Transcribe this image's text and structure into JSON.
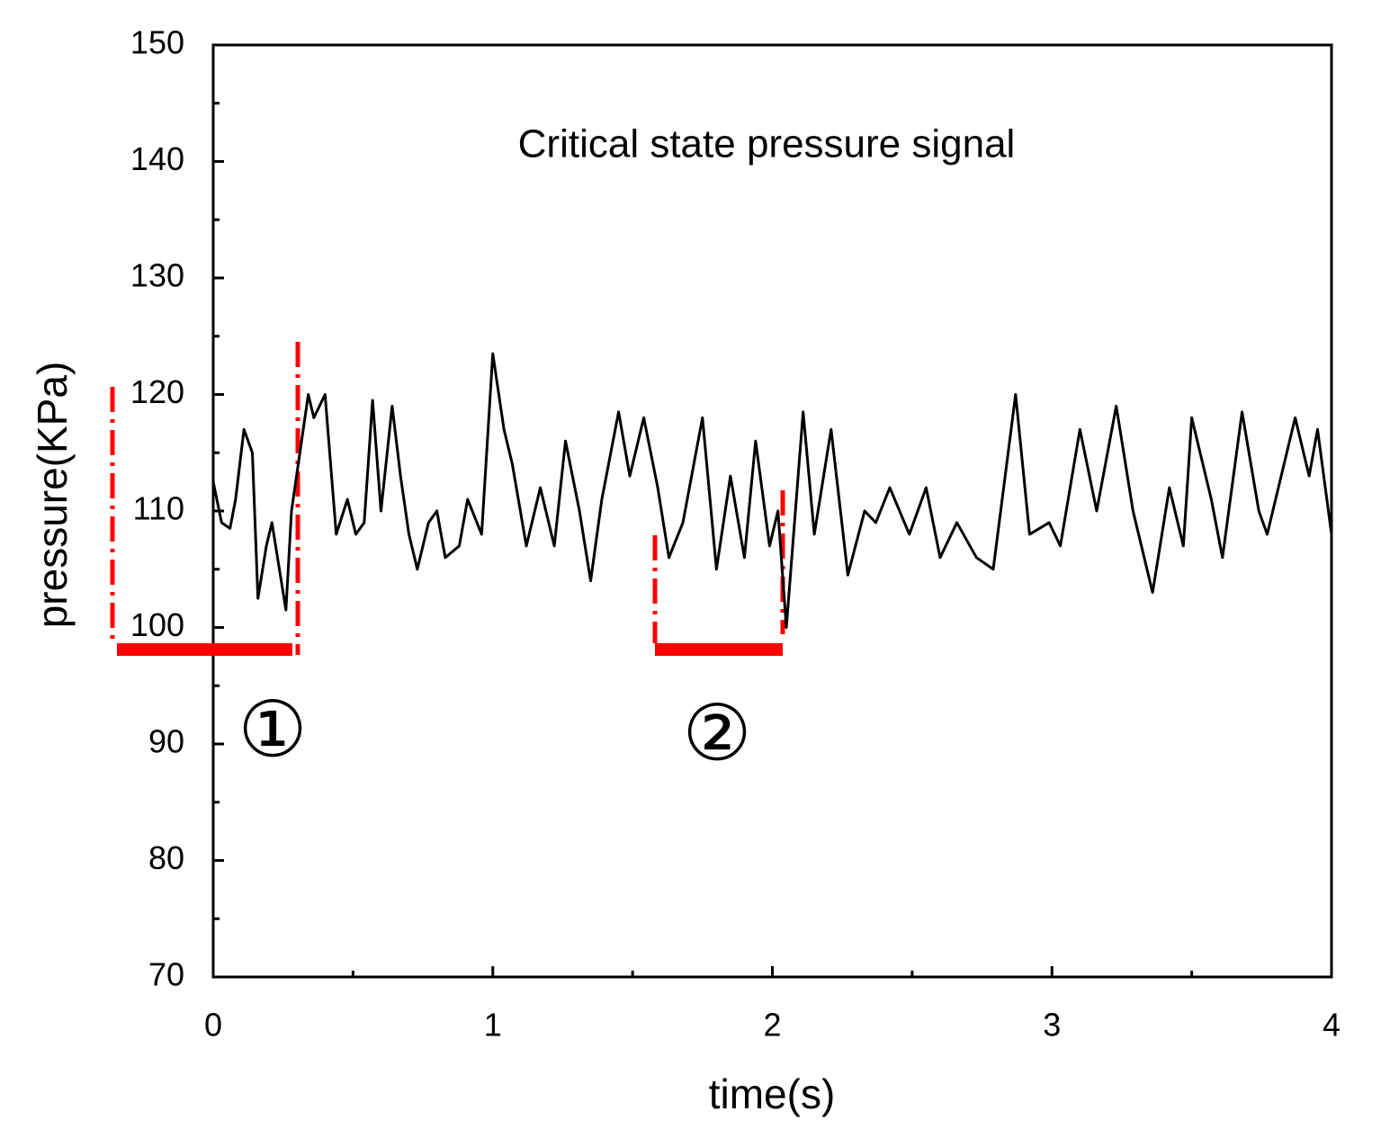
{
  "chart_data": {
    "type": "line",
    "x_label": "time(s)",
    "y_label": "pressure(KPa)",
    "annotations": [
      "Critical state pressure signal",
      "①",
      "②"
    ],
    "xlim": [
      0,
      4
    ],
    "xticks": [
      0,
      1,
      2,
      3,
      4
    ],
    "xminorticks": [
      0.5,
      1.5,
      2.5,
      3.5
    ],
    "ylim": [
      70,
      150
    ],
    "yticks": [
      70,
      80,
      90,
      100,
      110,
      120,
      130,
      140,
      150
    ],
    "yminorticks": [
      75,
      85,
      95,
      105,
      115,
      125,
      135,
      145
    ],
    "grid": false,
    "series": [
      {
        "name": "pressure",
        "color": "#000000",
        "x": [
          0,
          0.03,
          0.06,
          0.08,
          0.11,
          0.14,
          0.16,
          0.19,
          0.21,
          0.23,
          0.26,
          0.28,
          0.31,
          0.34,
          0.36,
          0.4,
          0.44,
          0.48,
          0.51,
          0.54,
          0.57,
          0.6,
          0.64,
          0.67,
          0.7,
          0.73,
          0.77,
          0.8,
          0.83,
          0.88,
          0.91,
          0.96,
          1.0,
          1.04,
          1.07,
          1.12,
          1.17,
          1.22,
          1.26,
          1.31,
          1.35,
          1.39,
          1.45,
          1.49,
          1.54,
          1.59,
          1.63,
          1.68,
          1.75,
          1.8,
          1.85,
          1.9,
          1.94,
          1.99,
          2.02,
          2.05,
          2.11,
          2.15,
          2.21,
          2.27,
          2.33,
          2.37,
          2.42,
          2.49,
          2.55,
          2.6,
          2.66,
          2.73,
          2.79,
          2.87,
          2.92,
          2.99,
          3.03,
          3.1,
          3.16,
          3.23,
          3.29,
          3.36,
          3.42,
          3.47,
          3.5,
          3.57,
          3.61,
          3.68,
          3.74,
          3.77,
          3.87,
          3.92,
          3.95,
          4.0
        ],
        "values": [
          112.5,
          109,
          108.5,
          111,
          117,
          115,
          102.5,
          107,
          109,
          106,
          101.5,
          110,
          115,
          120,
          118,
          120,
          108,
          111,
          108,
          109,
          119.5,
          110,
          119,
          113,
          108,
          105,
          109,
          110,
          106,
          107,
          111,
          108,
          123.5,
          117,
          114,
          107,
          112,
          107,
          116,
          110,
          104,
          111,
          118.5,
          113,
          118,
          112,
          106,
          109,
          118,
          105,
          113,
          106,
          116,
          107,
          110,
          100,
          118.5,
          108,
          117,
          104.5,
          110,
          109,
          112,
          108,
          112,
          106,
          109,
          106,
          105,
          120,
          108,
          109,
          107,
          117,
          110,
          119,
          110,
          103,
          112,
          107,
          118,
          111,
          106,
          118.5,
          110,
          108,
          118,
          113,
          117,
          108
        ]
      }
    ]
  }
}
